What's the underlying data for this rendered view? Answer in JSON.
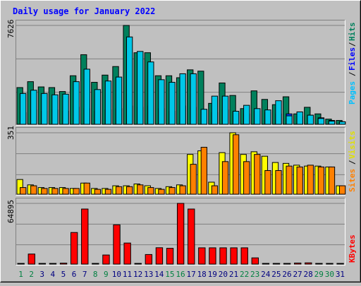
{
  "title": "Daily usage for January 2022",
  "colors": {
    "background": "#c0c0c0",
    "plot_bg": "#c0c0c0",
    "grid": "#808080",
    "hits": "#00805c",
    "files": "#0040ff",
    "pages": "#00c8e8",
    "visits": "#ffff00",
    "sites": "#ff8000",
    "kbytes": "#ff0000",
    "title": "#0000ff",
    "label_green": "#008040",
    "label_blue": "#0000ff",
    "label_cyan": "#00c0ff",
    "label_yellow": "#e0e000",
    "label_orange": "#ff8000",
    "label_red": "#ff0000",
    "label_gray": "#000080"
  },
  "chart_data": [
    {
      "type": "bar",
      "name": "hits-files-pages",
      "categories": [
        "1",
        "2",
        "3",
        "4",
        "5",
        "6",
        "7",
        "8",
        "9",
        "10",
        "11",
        "12",
        "13",
        "14",
        "15",
        "16",
        "17",
        "18",
        "19",
        "20",
        "21",
        "22",
        "23",
        "24",
        "25",
        "26",
        "27",
        "28",
        "29",
        "30",
        "31"
      ],
      "y_max_label": "7626",
      "ylim": [
        0,
        7626
      ],
      "legend_right": [
        "Pages",
        "Files",
        "Hits"
      ],
      "series": [
        {
          "name": "Hits",
          "values": [
            2900,
            3350,
            2950,
            2900,
            2600,
            3800,
            5400,
            3300,
            3850,
            4500,
            7626,
            5550,
            5550,
            3800,
            3800,
            3650,
            4250,
            4150,
            1700,
            3250,
            2300,
            1300,
            2650,
            2000,
            1600,
            2200,
            900,
            1400,
            900,
            500,
            400
          ]
        },
        {
          "name": "Files",
          "values": [
            1000,
            1200,
            1100,
            1200,
            1100,
            1400,
            1300,
            1100,
            1200,
            1300,
            1500,
            1400,
            1500,
            1300,
            1100,
            1500,
            1400,
            1200,
            1000,
            1200,
            1000,
            900,
            1100,
            1000,
            900,
            900,
            700,
            800,
            600,
            400,
            300
          ]
        },
        {
          "name": "Pages",
          "values": [
            2450,
            2700,
            2450,
            2350,
            2400,
            3350,
            4300,
            2750,
            3400,
            3700,
            6750,
            5650,
            4850,
            3500,
            3300,
            3950,
            3950,
            1250,
            2250,
            2250,
            1100,
            1550,
            1300,
            1200,
            1900,
            750,
            1050,
            800,
            550,
            350,
            300
          ]
        }
      ]
    },
    {
      "type": "bar",
      "name": "visits-sites",
      "categories": [
        "1",
        "2",
        "3",
        "4",
        "5",
        "6",
        "7",
        "8",
        "9",
        "10",
        "11",
        "12",
        "13",
        "14",
        "15",
        "16",
        "17",
        "18",
        "19",
        "20",
        "21",
        "22",
        "23",
        "24",
        "25",
        "26",
        "27",
        "28",
        "29",
        "30",
        "31"
      ],
      "y_max_label": "351",
      "ylim": [
        0,
        351
      ],
      "legend_right": [
        "Sites",
        "Visits"
      ],
      "series": [
        {
          "name": "Visits",
          "values": [
            90,
            60,
            45,
            45,
            45,
            40,
            70,
            40,
            40,
            55,
            55,
            65,
            55,
            40,
            50,
            60,
            230,
            250,
            75,
            240,
            351,
            230,
            245,
            220,
            185,
            180,
            170,
            165,
            165,
            160,
            55
          ]
        },
        {
          "name": "Sites",
          "values": [
            45,
            55,
            40,
            40,
            40,
            40,
            70,
            35,
            35,
            50,
            50,
            60,
            45,
            35,
            45,
            55,
            175,
            270,
            55,
            190,
            340,
            190,
            230,
            140,
            140,
            165,
            160,
            170,
            160,
            160,
            55
          ]
        }
      ]
    },
    {
      "type": "bar",
      "name": "kbytes",
      "categories": [
        "1",
        "2",
        "3",
        "4",
        "5",
        "6",
        "7",
        "8",
        "9",
        "10",
        "11",
        "12",
        "13",
        "14",
        "15",
        "16",
        "17",
        "18",
        "19",
        "20",
        "21",
        "22",
        "23",
        "24",
        "25",
        "26",
        "27",
        "28",
        "29",
        "30",
        "31"
      ],
      "y_max_label": "64895",
      "ylim": [
        0,
        64895
      ],
      "legend_right": [
        "KBytes"
      ],
      "series": [
        {
          "name": "KBytes",
          "values": [
            600,
            12000,
            800,
            800,
            2500,
            34500,
            59000,
            1200,
            11000,
            42500,
            23500,
            700,
            11500,
            18600,
            18000,
            64895,
            59000,
            18500,
            18500,
            18500,
            18500,
            18500,
            8000,
            800,
            1500,
            1000,
            2600,
            2800,
            700,
            700,
            600
          ]
        }
      ]
    }
  ]
}
